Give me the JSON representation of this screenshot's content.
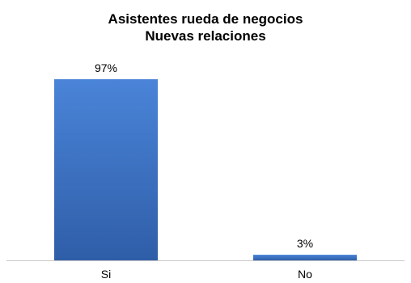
{
  "chart_data": {
    "type": "bar",
    "title": [
      "Asistentes rueda de negocios",
      "Nuevas relaciones"
    ],
    "categories": [
      "Si",
      "No"
    ],
    "values": [
      97,
      3
    ],
    "data_labels": [
      "97%",
      "3%"
    ],
    "ylim": [
      0,
      100
    ],
    "grid": false,
    "legend": "none",
    "bar_color": "#3a6fc1",
    "bar_gradient_top": "#4a84d8",
    "bar_gradient_bottom": "#2f5ea8",
    "axis_color": "#c8c8c8"
  }
}
